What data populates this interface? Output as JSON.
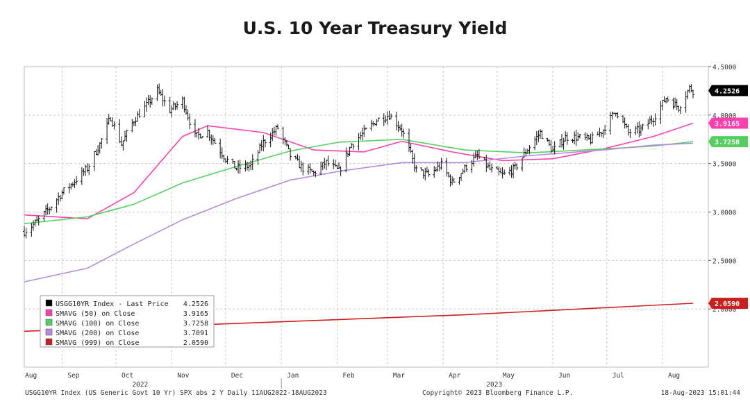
{
  "title": "U.S. 10 Year Treasury Yield",
  "footer": {
    "left": "USGG10YR Index (US Generic Govt 10 Yr) SPX abs 2 Y  Daily 11AUG2022-18AUG2023",
    "center": "Copyright© 2023 Bloomberg Finance L.P.",
    "right": "18-Aug-2023 15:01:44"
  },
  "chart_data": {
    "type": "line",
    "x_ticks": [
      "Aug",
      "Sep",
      "Oct",
      "Nov",
      "Dec",
      "Jan",
      "Feb",
      "Mar",
      "Apr",
      "May",
      "Jun",
      "Jul",
      "Aug"
    ],
    "year_labels": [
      "2022",
      "2023"
    ],
    "y_ticks": [
      "4.5000",
      "4.0000",
      "3.5000",
      "3.0000",
      "2.5000",
      "2.0000"
    ],
    "ylim": [
      1.4,
      4.5
    ],
    "grid": true,
    "legend_position": "bottom-left",
    "price_series": {
      "name": "USGG10YR Index - Last Price",
      "color": "#000000",
      "last_value": "4.2526",
      "x": [
        "2022-08-11",
        "2022-08-18",
        "2022-08-25",
        "2022-09-01",
        "2022-09-08",
        "2022-09-15",
        "2022-09-22",
        "2022-09-28",
        "2022-10-04",
        "2022-10-11",
        "2022-10-18",
        "2022-10-24",
        "2022-10-31",
        "2022-11-07",
        "2022-11-14",
        "2022-11-21",
        "2022-12-01",
        "2022-12-07",
        "2022-12-15",
        "2022-12-22",
        "2022-12-30",
        "2023-01-06",
        "2023-01-13",
        "2023-01-19",
        "2023-01-26",
        "2023-02-02",
        "2023-02-09",
        "2023-02-16",
        "2023-02-23",
        "2023-03-02",
        "2023-03-09",
        "2023-03-17",
        "2023-03-24",
        "2023-03-31",
        "2023-04-06",
        "2023-04-13",
        "2023-04-20",
        "2023-04-27",
        "2023-05-04",
        "2023-05-11",
        "2023-05-18",
        "2023-05-25",
        "2023-06-01",
        "2023-06-08",
        "2023-06-15",
        "2023-06-22",
        "2023-06-29",
        "2023-07-06",
        "2023-07-13",
        "2023-07-20",
        "2023-07-27",
        "2023-08-03",
        "2023-08-10",
        "2023-08-16",
        "2023-08-18"
      ],
      "y": [
        2.8,
        2.9,
        3.04,
        3.2,
        3.32,
        3.45,
        3.7,
        3.98,
        3.7,
        3.95,
        4.1,
        4.25,
        4.05,
        4.15,
        3.78,
        3.83,
        3.55,
        3.45,
        3.48,
        3.72,
        3.87,
        3.58,
        3.45,
        3.4,
        3.51,
        3.42,
        3.7,
        3.82,
        3.95,
        4.0,
        3.85,
        3.43,
        3.38,
        3.49,
        3.3,
        3.45,
        3.58,
        3.44,
        3.38,
        3.45,
        3.65,
        3.82,
        3.63,
        3.77,
        3.77,
        3.74,
        3.85,
        4.05,
        3.82,
        3.85,
        3.97,
        4.18,
        4.08,
        4.28,
        4.25
      ]
    },
    "series": [
      {
        "name": "SMAVG (50)  on Close",
        "color": "#ff3fae",
        "last_value": "3.9165",
        "x": [
          "2022-08-11",
          "2022-09-15",
          "2022-10-11",
          "2022-11-07",
          "2022-11-21",
          "2022-12-22",
          "2023-01-19",
          "2023-02-16",
          "2023-03-09",
          "2023-04-06",
          "2023-05-04",
          "2023-06-01",
          "2023-06-29",
          "2023-07-27",
          "2023-08-18"
        ],
        "y": [
          2.97,
          2.93,
          3.2,
          3.78,
          3.89,
          3.82,
          3.64,
          3.62,
          3.73,
          3.62,
          3.53,
          3.55,
          3.65,
          3.78,
          3.9165
        ]
      },
      {
        "name": "SMAVG (100)  on Close",
        "color": "#55d060",
        "last_value": "3.7258",
        "x": [
          "2022-08-11",
          "2022-09-15",
          "2022-10-11",
          "2022-11-07",
          "2022-12-07",
          "2023-01-06",
          "2023-02-02",
          "2023-03-09",
          "2023-04-13",
          "2023-05-18",
          "2023-06-29",
          "2023-07-27",
          "2023-08-18"
        ],
        "y": [
          2.88,
          2.95,
          3.08,
          3.3,
          3.47,
          3.63,
          3.72,
          3.75,
          3.64,
          3.61,
          3.65,
          3.68,
          3.7258
        ]
      },
      {
        "name": "SMAVG (200)  on Close",
        "color": "#b58bdc",
        "last_value": "3.7091",
        "x": [
          "2022-08-11",
          "2022-09-15",
          "2022-10-11",
          "2022-11-07",
          "2022-12-07",
          "2023-01-06",
          "2023-02-02",
          "2023-03-09",
          "2023-04-13",
          "2023-05-18",
          "2023-06-29",
          "2023-07-27",
          "2023-08-18"
        ],
        "y": [
          2.28,
          2.42,
          2.67,
          2.92,
          3.14,
          3.33,
          3.42,
          3.51,
          3.51,
          3.58,
          3.64,
          3.69,
          3.7091
        ]
      },
      {
        "name": "SMAVG (999)  on Close",
        "color": "#cc2020",
        "last_value": "2.0590",
        "x": [
          "2022-08-11",
          "2022-12-07",
          "2023-04-13",
          "2023-08-18"
        ],
        "y": [
          1.77,
          1.85,
          1.94,
          2.059
        ]
      }
    ]
  }
}
